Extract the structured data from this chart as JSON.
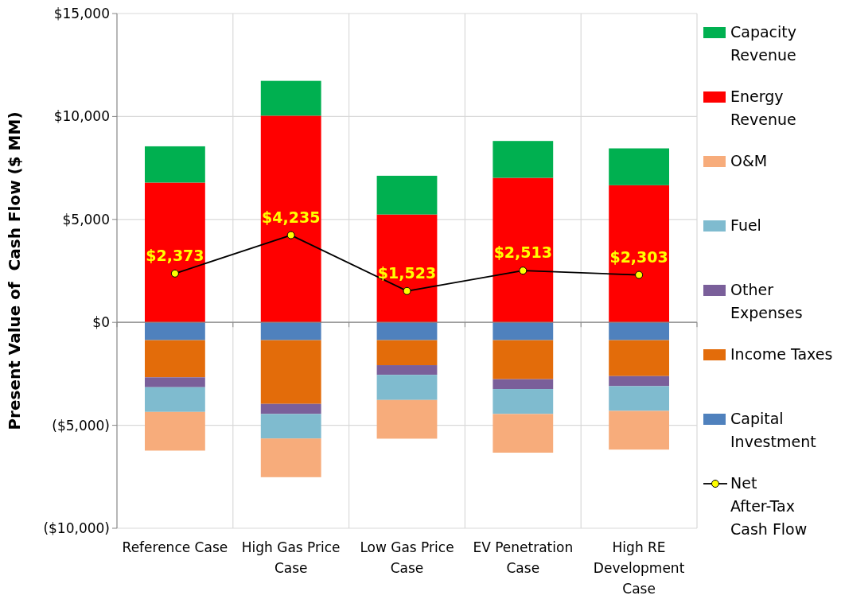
{
  "chart_data": {
    "type": "bar",
    "stacked": true,
    "ylabel": "Present Value of  Cash Flow ($ MM)",
    "categories": [
      "Reference Case",
      "High Gas Price Case",
      "Low Gas Price Case",
      "EV Penetration Case",
      "High RE Development Case"
    ],
    "series": [
      {
        "name": "Capital Investment",
        "color": "#4f81bd",
        "values": [
          -865,
          -865,
          -865,
          -865,
          -865
        ]
      },
      {
        "name": "Income Taxes",
        "color": "#e36c0a",
        "values": [
          -1805,
          -3095,
          -1215,
          -1895,
          -1745
        ]
      },
      {
        "name": "Other Expenses",
        "color": "#7a5f9a",
        "values": [
          -480,
          -490,
          -470,
          -480,
          -490
        ]
      },
      {
        "name": "Fuel",
        "color": "#7fbbcf",
        "values": [
          -1200,
          -1190,
          -1220,
          -1210,
          -1200
        ]
      },
      {
        "name": "O&M",
        "color": "#f7ac7b",
        "values": [
          -1880,
          -1880,
          -1880,
          -1880,
          -1880
        ]
      },
      {
        "name": "Energy Revenue",
        "color": "#ff0000",
        "values": [
          6790,
          10040,
          5240,
          7020,
          6660
        ]
      },
      {
        "name": "Capacity Revenue",
        "color": "#00b050",
        "values": [
          1760,
          1690,
          1880,
          1790,
          1790
        ]
      },
      {
        "name": "Net After-Tax Cash Flow",
        "type": "line",
        "color": "#000000",
        "marker": "circle",
        "values": [
          2373,
          4235,
          1523,
          2513,
          2303
        ],
        "value_labels": [
          "$2,373",
          "$4,235",
          "$1,523",
          "$2,513",
          "$2,303"
        ]
      }
    ],
    "ylim": [
      -10000,
      15000
    ],
    "yticks": [
      {
        "value": -10000,
        "label": "($10,000)"
      },
      {
        "value": -5000,
        "label": "($5,000)"
      },
      {
        "value": 0,
        "label": "$0"
      },
      {
        "value": 5000,
        "label": "$5,000"
      },
      {
        "value": 10000,
        "label": "$10,000"
      },
      {
        "value": 15000,
        "label": "$15,000"
      }
    ],
    "grid": true,
    "legend": "right"
  }
}
